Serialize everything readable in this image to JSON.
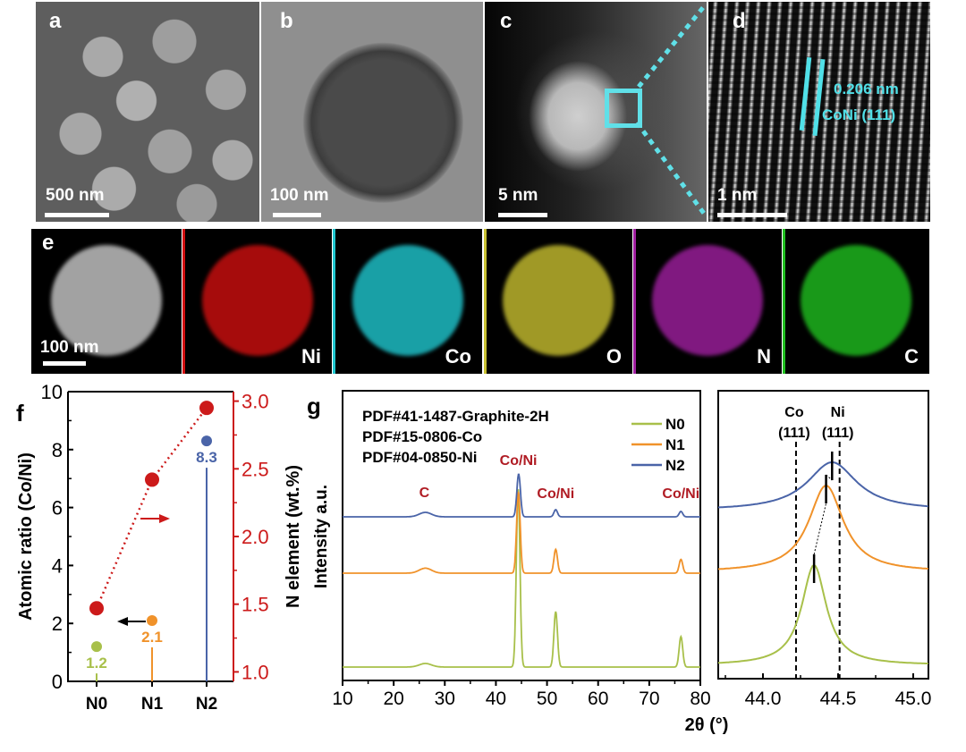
{
  "micrographs": [
    {
      "label": "a",
      "scale": "500 nm",
      "kind": "SEM"
    },
    {
      "label": "b",
      "scale": "100 nm",
      "kind": "TEM"
    },
    {
      "label": "c",
      "scale": "5 nm",
      "kind": "HAADF"
    },
    {
      "label": "d",
      "scale": "1 nm",
      "kind": "HRTEM",
      "annotation_spacing": "0.206 nm",
      "annotation_plane": "CoNi (111)"
    }
  ],
  "eds": {
    "label": "e",
    "scale": "100 nm",
    "maps": [
      {
        "element": "",
        "color": "#d8d8d8"
      },
      {
        "element": "Ni",
        "color": "#d01010"
      },
      {
        "element": "Co",
        "color": "#20c8d0"
      },
      {
        "element": "O",
        "color": "#c8c030"
      },
      {
        "element": "N",
        "color": "#a020a0"
      },
      {
        "element": "C",
        "color": "#20c020"
      }
    ]
  },
  "chart_data": [
    {
      "type": "scatter",
      "panel": "f",
      "categories": [
        "N0",
        "N1",
        "N2"
      ],
      "ylabel": "Atomic ratio (Co/Ni)",
      "ylim": [
        0,
        10
      ],
      "yticks": [
        "0",
        "2",
        "4",
        "6",
        "8",
        "10"
      ],
      "y2label": "N element (wt.%)",
      "y2lim": [
        0.93,
        3.07
      ],
      "y2ticks": [
        "1.0",
        "1.5",
        "2.0",
        "2.5",
        "3.0"
      ],
      "series": [
        {
          "name": "Atomic ratio (Co/Ni)",
          "axis": "left",
          "values": [
            1.2,
            2.1,
            8.3
          ],
          "labels": [
            "1.2",
            "2.1",
            "8.3"
          ],
          "colors": [
            "#a8c04a",
            "#f0922a",
            "#4a64a8"
          ]
        },
        {
          "name": "N element (wt.%)",
          "axis": "right",
          "values": [
            1.47,
            2.42,
            2.95
          ],
          "color": "#cc1a1a"
        }
      ]
    },
    {
      "type": "line",
      "panel": "g",
      "xlabel": "2θ (°)",
      "ylabel": "Intensity a.u.",
      "xlim": [
        10,
        80
      ],
      "xticks": [
        "10",
        "20",
        "30",
        "40",
        "50",
        "60",
        "70",
        "80"
      ],
      "references": [
        "PDF#41-1487-Graphite-2H",
        "PDF#15-0806-Co",
        "PDF#04-0850-Ni"
      ],
      "peak_labels": [
        {
          "text": "C",
          "x": 26
        },
        {
          "text": "Co/Ni",
          "x": 44.4
        },
        {
          "text": "Co/Ni",
          "x": 51.7
        },
        {
          "text": "Co/Ni",
          "x": 76.2
        }
      ],
      "series": [
        {
          "name": "N0",
          "color": "#a8c04a",
          "peaks": [
            {
              "x": 26.2,
              "h": 0.02
            },
            {
              "x": 44.35,
              "h": 1.0
            },
            {
              "x": 51.7,
              "h": 0.31
            },
            {
              "x": 76.2,
              "h": 0.17
            }
          ]
        },
        {
          "name": "N1",
          "color": "#f0922a",
          "peaks": [
            {
              "x": 26.2,
              "h": 0.04
            },
            {
              "x": 44.4,
              "h": 0.65
            },
            {
              "x": 51.7,
              "h": 0.19
            },
            {
              "x": 76.2,
              "h": 0.11
            }
          ]
        },
        {
          "name": "N2",
          "color": "#4a64a8",
          "peaks": [
            {
              "x": 26.2,
              "h": 0.05
            },
            {
              "x": 44.45,
              "h": 0.48
            },
            {
              "x": 51.7,
              "h": 0.08
            },
            {
              "x": 76.2,
              "h": 0.06
            }
          ]
        }
      ]
    },
    {
      "type": "line",
      "panel": "g-inset",
      "xlim": [
        43.7,
        45.1
      ],
      "xticks": [
        "44.0",
        "44.5",
        "45.0"
      ],
      "reference_lines": [
        {
          "label_top": "Co",
          "label_bottom": "(111)",
          "x": 44.22
        },
        {
          "label_top": "Ni",
          "label_bottom": "(111)",
          "x": 44.51
        }
      ],
      "series": [
        {
          "name": "N0",
          "color": "#a8c04a",
          "peak_x": 44.34,
          "width": 0.1
        },
        {
          "name": "N1",
          "color": "#f0922a",
          "peak_x": 44.42,
          "width": 0.14
        },
        {
          "name": "N2",
          "color": "#4a64a8",
          "peak_x": 44.46,
          "width": 0.2
        }
      ]
    }
  ]
}
